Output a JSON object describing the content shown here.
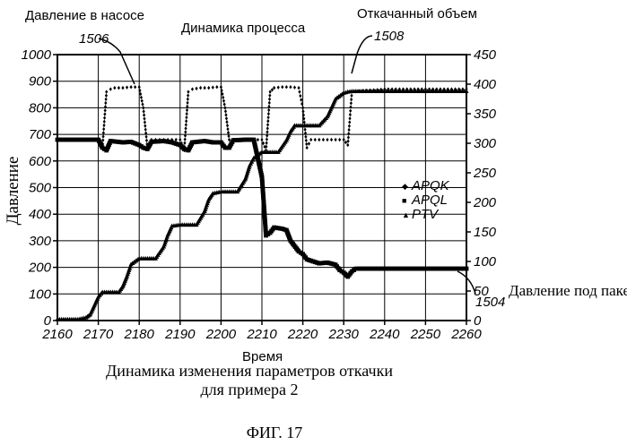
{
  "figure": {
    "caption_line1": "Динамика изменения параметров откачки",
    "caption_line2": "для примера 2",
    "fig_label": "ФИГ. 17"
  },
  "chart_data": {
    "type": "line",
    "title": "Динамика процесса",
    "xlabel": "Время",
    "ylabel_left": "Давление",
    "xlim": [
      2160,
      2260
    ],
    "ylim_left": [
      0,
      1000
    ],
    "ylim_right": [
      0,
      450
    ],
    "x_ticks": [
      "2160",
      "2170",
      "2180",
      "2190",
      "2200",
      "2210",
      "2220",
      "2230",
      "2240",
      "2250",
      "2260"
    ],
    "y_left_ticks": [
      "0",
      "100",
      "200",
      "300",
      "400",
      "500",
      "600",
      "700",
      "800",
      "900",
      "1000"
    ],
    "y_right_ticks": [
      "0",
      "50",
      "100",
      "150",
      "200",
      "250",
      "300",
      "350",
      "400",
      "450"
    ],
    "grid": true,
    "legend": {
      "position": "right-middle",
      "entries": [
        {
          "label": "APQK",
          "marker": "diamond"
        },
        {
          "label": "APQL",
          "marker": "square"
        },
        {
          "label": "PTV",
          "marker": "triangle"
        }
      ]
    },
    "annotations": [
      {
        "text": "Давление в насосе",
        "ref": "1506"
      },
      {
        "text": "Откачанный объем",
        "ref": "1508"
      },
      {
        "text": "Давление под пакером",
        "ref": "1504"
      }
    ],
    "series": [
      {
        "name": "APQK",
        "axis": "left",
        "x": [
          2160,
          2170,
          2171,
          2172,
          2173,
          2174,
          2176,
          2178,
          2180,
          2181,
          2182,
          2183,
          2185,
          2187,
          2189,
          2190,
          2191,
          2192,
          2193,
          2195,
          2197,
          2199,
          2200,
          2201,
          2202,
          2203,
          2205,
          2207,
          2209,
          2210,
          2211,
          2212,
          2213,
          2215,
          2217,
          2219,
          2220,
          2221,
          2222,
          2224,
          2226,
          2228,
          2230,
          2231,
          2232,
          2240,
          2250,
          2260
        ],
        "y": [
          680,
          680,
          650,
          860,
          870,
          875,
          875,
          878,
          878,
          800,
          650,
          680,
          680,
          680,
          680,
          680,
          640,
          860,
          870,
          875,
          875,
          878,
          878,
          800,
          680,
          680,
          680,
          680,
          680,
          680,
          640,
          860,
          875,
          878,
          878,
          875,
          800,
          650,
          680,
          680,
          680,
          680,
          680,
          660,
          860,
          870,
          870,
          870
        ]
      },
      {
        "name": "APQL",
        "axis": "left",
        "x": [
          2160,
          2162,
          2165,
          2168,
          2170,
          2171,
          2172,
          2173,
          2176,
          2178,
          2180,
          2181,
          2182,
          2183,
          2186,
          2188,
          2190,
          2191,
          2192,
          2193,
          2196,
          2198,
          2200,
          2201,
          2202,
          2203,
          2206,
          2208,
          2210,
          2211,
          2212,
          2213,
          2215,
          2216,
          2217,
          2219,
          2220,
          2221,
          2222,
          2224,
          2226,
          2228,
          2229,
          2230,
          2231,
          2232,
          2233,
          2235,
          2240,
          2250,
          2258,
          2260
        ],
        "y": [
          680,
          680,
          680,
          680,
          680,
          650,
          640,
          675,
          670,
          672,
          660,
          650,
          645,
          672,
          675,
          670,
          660,
          645,
          640,
          670,
          675,
          670,
          670,
          650,
          650,
          678,
          680,
          680,
          540,
          320,
          330,
          350,
          345,
          340,
          300,
          260,
          250,
          230,
          225,
          215,
          218,
          210,
          190,
          180,
          165,
          185,
          195,
          195,
          195,
          195,
          195,
          195
        ]
      },
      {
        "name": "PTV",
        "axis": "right",
        "x": [
          2160,
          2165,
          2167,
          2168,
          2169,
          2170,
          2171,
          2172,
          2174,
          2175,
          2176,
          2177,
          2178,
          2180,
          2181,
          2182,
          2183,
          2184,
          2186,
          2187,
          2188,
          2190,
          2191,
          2192,
          2193,
          2194,
          2196,
          2197,
          2198,
          2200,
          2201,
          2202,
          2203,
          2204,
          2206,
          2207,
          2208,
          2210,
          2211,
          2212,
          2213,
          2214,
          2216,
          2217,
          2218,
          2220,
          2221,
          2222,
          2223,
          2224,
          2226,
          2227,
          2228,
          2230,
          2231,
          2232,
          2233,
          2240,
          2250,
          2260
        ],
        "y": [
          2,
          2,
          5,
          10,
          25,
          40,
          48,
          48,
          48,
          48,
          58,
          75,
          95,
          105,
          105,
          105,
          105,
          105,
          125,
          145,
          160,
          162,
          162,
          162,
          162,
          162,
          185,
          205,
          215,
          218,
          218,
          218,
          218,
          218,
          240,
          262,
          275,
          285,
          285,
          285,
          285,
          285,
          305,
          320,
          330,
          330,
          330,
          330,
          330,
          330,
          345,
          360,
          375,
          385,
          387,
          388,
          388,
          388,
          388,
          388
        ]
      }
    ]
  }
}
